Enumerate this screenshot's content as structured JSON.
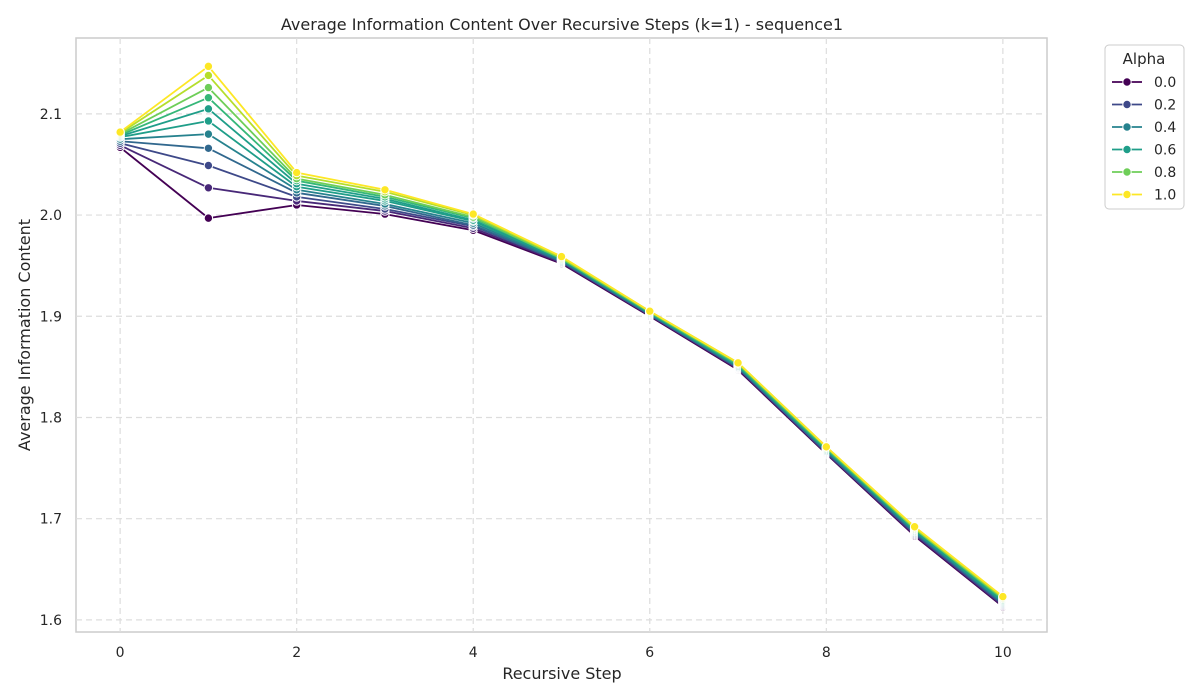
{
  "chart_data": {
    "type": "line",
    "title": "Average Information Content Over Recursive Steps (k=1) - sequence1",
    "xlabel": "Recursive Step",
    "ylabel": "Average Information Content",
    "xlim": [
      -0.5,
      10.5
    ],
    "ylim": [
      1.588,
      2.175
    ],
    "xticks": [
      0,
      2,
      4,
      6,
      8,
      10
    ],
    "yticks": [
      1.6,
      1.7,
      1.8,
      1.9,
      2.0,
      2.1
    ],
    "xtick_labels": [
      "0",
      "2",
      "4",
      "6",
      "8",
      "10"
    ],
    "ytick_labels": [
      "1.6",
      "1.7",
      "1.8",
      "1.9",
      "2.0",
      "2.1"
    ],
    "grid": true,
    "grid_style": "dashed",
    "legend": {
      "title": "Alpha",
      "placement": "upper-right-outside"
    },
    "x": [
      0,
      1,
      2,
      3,
      4,
      5,
      6,
      7,
      8,
      9,
      10
    ],
    "series": [
      {
        "name": "0.0",
        "color": "#440154",
        "in_legend": true,
        "values": [
          2.067,
          1.997,
          2.01,
          2.001,
          1.985,
          1.952,
          1.9,
          1.847,
          1.764,
          1.683,
          1.613
        ]
      },
      {
        "name": "0.1",
        "color": "#482878",
        "in_legend": false,
        "values": [
          2.069,
          2.027,
          2.014,
          2.004,
          1.987,
          1.953,
          1.901,
          1.848,
          1.765,
          1.684,
          1.614
        ]
      },
      {
        "name": "0.2",
        "color": "#3e4989",
        "in_legend": true,
        "values": [
          2.071,
          2.049,
          2.018,
          2.006,
          1.989,
          1.954,
          1.901,
          1.849,
          1.765,
          1.685,
          1.615
        ]
      },
      {
        "name": "0.3",
        "color": "#31688e",
        "in_legend": false,
        "values": [
          2.073,
          2.066,
          2.022,
          2.009,
          1.99,
          1.954,
          1.902,
          1.849,
          1.766,
          1.686,
          1.616
        ]
      },
      {
        "name": "0.4",
        "color": "#26828e",
        "in_legend": true,
        "values": [
          2.075,
          2.08,
          2.025,
          2.011,
          1.992,
          1.955,
          1.902,
          1.85,
          1.767,
          1.687,
          1.617
        ]
      },
      {
        "name": "0.5",
        "color": "#1f9e89",
        "in_legend": false,
        "values": [
          2.077,
          2.093,
          2.028,
          2.014,
          1.994,
          1.956,
          1.903,
          1.851,
          1.768,
          1.688,
          1.618
        ]
      },
      {
        "name": "0.6",
        "color": "#1f9e89",
        "in_legend": true,
        "values": [
          2.078,
          2.105,
          2.031,
          2.016,
          1.995,
          1.956,
          1.903,
          1.851,
          1.768,
          1.689,
          1.619
        ]
      },
      {
        "name": "0.7",
        "color": "#35b779",
        "in_legend": false,
        "values": [
          2.079,
          2.116,
          2.034,
          2.018,
          1.997,
          1.957,
          1.904,
          1.852,
          1.769,
          1.69,
          1.62
        ]
      },
      {
        "name": "0.8",
        "color": "#6ece58",
        "in_legend": true,
        "values": [
          2.08,
          2.126,
          2.036,
          2.02,
          1.998,
          1.957,
          1.904,
          1.853,
          1.77,
          1.69,
          1.621
        ]
      },
      {
        "name": "0.9",
        "color": "#b5de2b",
        "in_legend": false,
        "values": [
          2.081,
          2.138,
          2.039,
          2.023,
          2.0,
          1.958,
          1.905,
          1.854,
          1.771,
          1.691,
          1.622
        ]
      },
      {
        "name": "1.0",
        "color": "#fde725",
        "in_legend": true,
        "values": [
          2.082,
          2.147,
          2.042,
          2.025,
          2.001,
          1.959,
          1.905,
          1.854,
          1.771,
          1.692,
          1.623
        ]
      }
    ]
  }
}
